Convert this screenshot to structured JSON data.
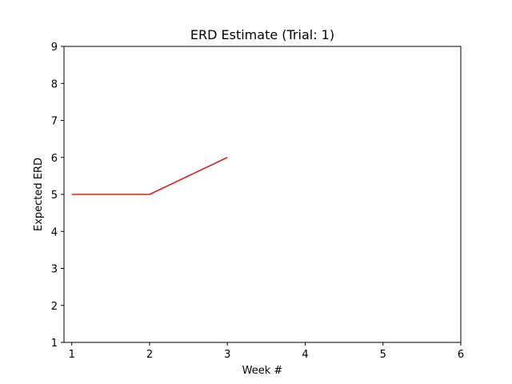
{
  "chart_data": {
    "type": "line",
    "title": "ERD Estimate (Trial: 1)",
    "xlabel": "Week #",
    "ylabel": "Expected ERD",
    "xlim": [
      0.9,
      6.0
    ],
    "ylim": [
      1,
      9
    ],
    "xticks": [
      1,
      2,
      3,
      4,
      5,
      6
    ],
    "yticks": [
      1,
      2,
      3,
      4,
      5,
      6,
      7,
      8,
      9
    ],
    "grid": false,
    "series": [
      {
        "color": "#d62020",
        "x": [
          1,
          2,
          3
        ],
        "y": [
          5,
          5,
          6
        ]
      }
    ]
  }
}
